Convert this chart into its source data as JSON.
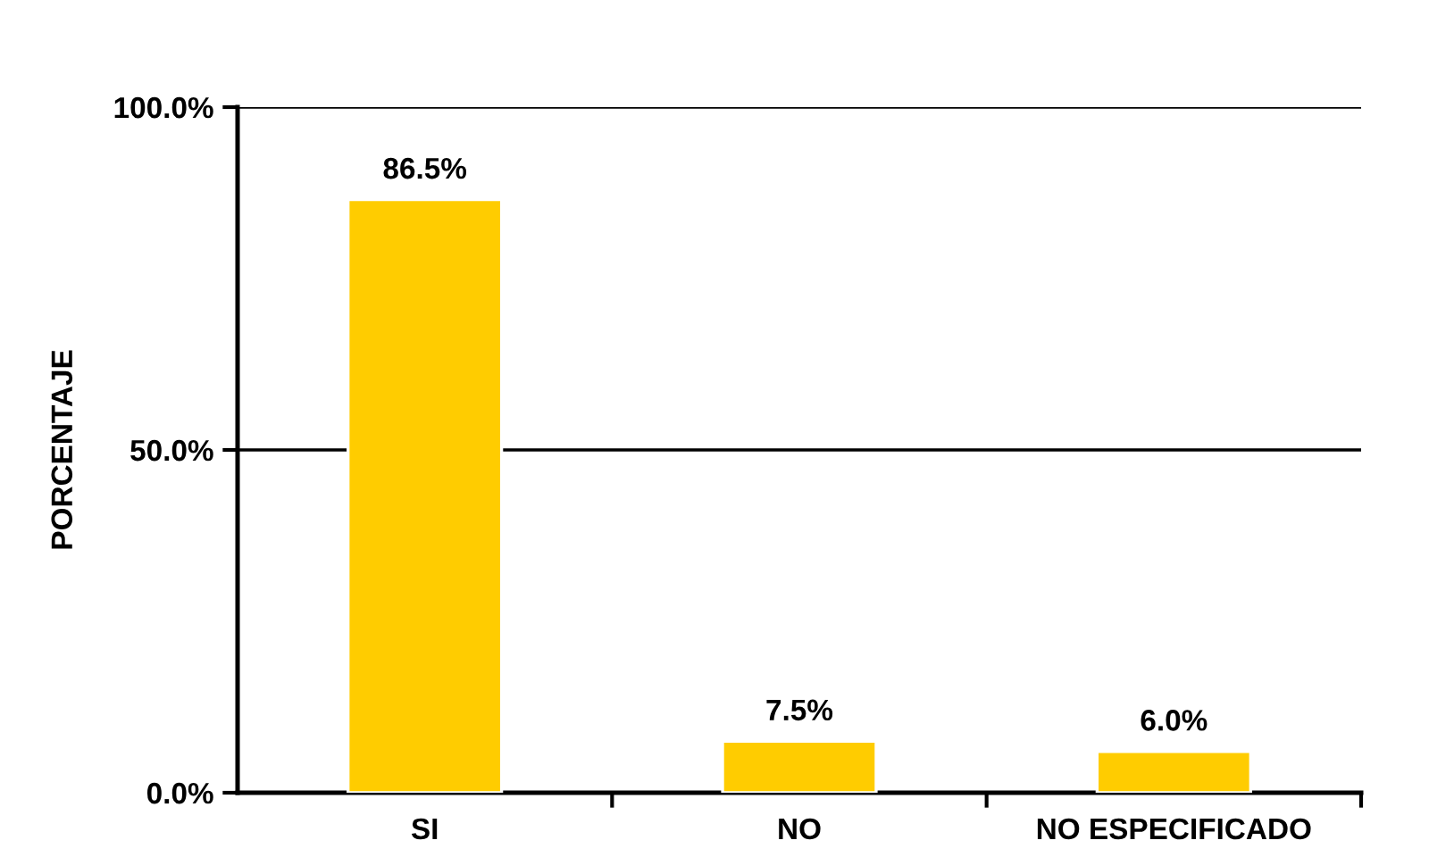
{
  "chart_data": {
    "type": "bar",
    "ylabel": "PORCENTAJE",
    "categories": [
      "SI",
      "NO",
      "NO ESPECIFICADO"
    ],
    "values": [
      86.5,
      7.5,
      6.0
    ],
    "value_labels": [
      "86.5%",
      "7.5%",
      "6.0%"
    ],
    "color": "#ffcc00",
    "ylim": [
      0,
      100
    ],
    "yticks": [
      {
        "value": 0,
        "label": "0.0%"
      },
      {
        "value": 50,
        "label": "50.0%"
      },
      {
        "value": 100,
        "label": "100.0%"
      }
    ],
    "grid": "y"
  }
}
